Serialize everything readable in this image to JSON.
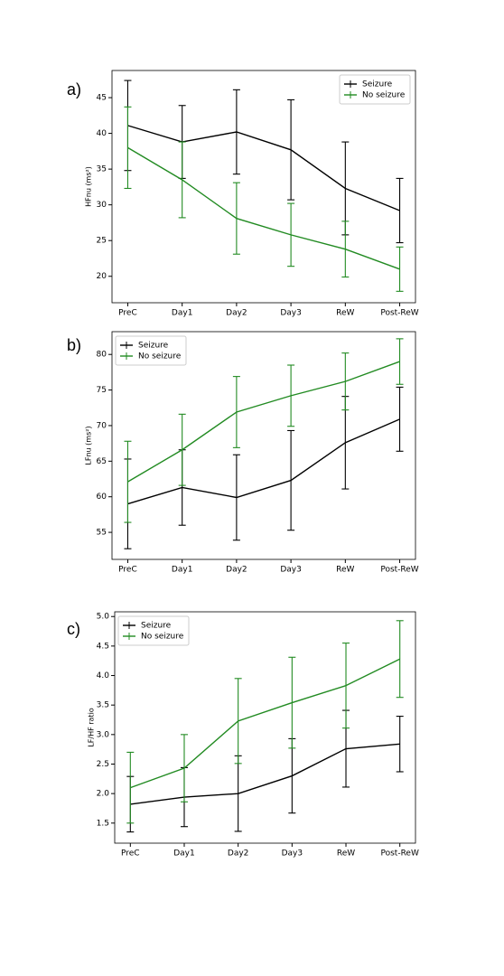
{
  "chart_data": [
    {
      "type": "line",
      "label": "a)",
      "ylabel": "HFnu (ms²)",
      "legend": "upper right",
      "categories": [
        "PreC",
        "Day1",
        "Day2",
        "Day3",
        "ReW",
        "Post-ReW"
      ],
      "ylim": [
        16.3,
        48.8
      ],
      "yticks": [
        20,
        25,
        30,
        35,
        40,
        45
      ],
      "series": [
        {
          "name": "Seizure",
          "color": "#000000",
          "values": [
            41.1,
            38.8,
            40.2,
            37.7,
            32.3,
            29.2
          ],
          "errors": [
            6.3,
            5.1,
            5.9,
            7.0,
            6.5,
            4.5
          ]
        },
        {
          "name": "No seizure",
          "color": "#228b22",
          "values": [
            38.0,
            33.5,
            28.1,
            25.8,
            23.8,
            21.0
          ],
          "errors": [
            5.7,
            5.3,
            5.0,
            4.4,
            3.9,
            3.1
          ]
        }
      ]
    },
    {
      "type": "line",
      "label": "b)",
      "ylabel": "LFnu (ms²)",
      "legend": "upper left",
      "categories": [
        "PreC",
        "Day1",
        "Day2",
        "Day3",
        "ReW",
        "Post-ReW"
      ],
      "ylim": [
        51.2,
        83.2
      ],
      "yticks": [
        55,
        60,
        65,
        70,
        75,
        80
      ],
      "series": [
        {
          "name": "Seizure",
          "color": "#000000",
          "values": [
            59.0,
            61.3,
            59.9,
            62.3,
            67.6,
            70.9
          ],
          "errors": [
            6.3,
            5.3,
            6.0,
            7.0,
            6.5,
            4.5
          ]
        },
        {
          "name": "No seizure",
          "color": "#228b22",
          "values": [
            62.1,
            66.6,
            71.9,
            74.2,
            76.2,
            79.0
          ],
          "errors": [
            5.7,
            5.0,
            5.0,
            4.3,
            4.0,
            3.2
          ]
        }
      ]
    },
    {
      "type": "line",
      "label": "c)",
      "ylabel": "LF/HF ratio",
      "legend": "upper left",
      "categories": [
        "PreC",
        "Day1",
        "Day2",
        "Day3",
        "ReW",
        "Post-ReW"
      ],
      "ylim": [
        1.16,
        5.08
      ],
      "yticks": [
        {
          "value": 1.5,
          "label": "1.5"
        },
        {
          "value": 2,
          "label": "2.0"
        },
        {
          "value": 2.5,
          "label": "2.5"
        },
        {
          "value": 3,
          "label": "3.0"
        },
        {
          "value": 3.5,
          "label": "3.5"
        },
        {
          "value": 4,
          "label": "4.0"
        },
        {
          "value": 4.5,
          "label": "4.5"
        },
        {
          "value": 5,
          "label": "5.0"
        }
      ],
      "series": [
        {
          "name": "Seizure",
          "color": "#000000",
          "values": [
            1.82,
            1.94,
            2.0,
            2.3,
            2.76,
            2.84
          ],
          "errors": [
            0.47,
            0.5,
            0.64,
            0.63,
            0.65,
            0.47
          ]
        },
        {
          "name": "No seizure",
          "color": "#228b22",
          "values": [
            2.1,
            2.43,
            3.23,
            3.54,
            3.83,
            4.28
          ],
          "errors": [
            0.6,
            0.57,
            0.72,
            0.77,
            0.72,
            0.65
          ]
        }
      ]
    }
  ]
}
